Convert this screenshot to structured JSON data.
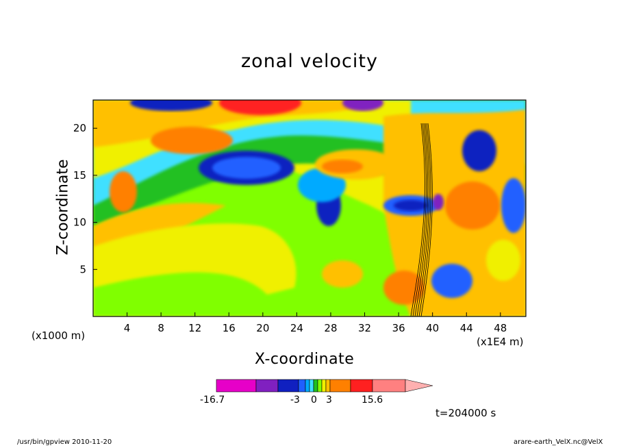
{
  "chart_data": {
    "type": "heatmap",
    "title": "zonal velocity",
    "xlabel": "X-coordinate",
    "ylabel": "Z-coordinate",
    "x_unit": "(x1000 m)",
    "x_unit_secondary": "(x1E4 m)",
    "x_ticks": [
      "4",
      "8",
      "12",
      "16",
      "20",
      "24",
      "28",
      "32",
      "36",
      "40",
      "44",
      "48"
    ],
    "y_ticks": [
      "5",
      "10",
      "15",
      "20"
    ],
    "xlim": [
      0,
      51
    ],
    "ylim": [
      0,
      23
    ],
    "grid": false,
    "colorbar": {
      "tick_labels": [
        "-16.7",
        "-3",
        "0",
        "3",
        "15.6"
      ],
      "colors": [
        "#e600c8",
        "#8020c0",
        "#1020c0",
        "#2060ff",
        "#00aaff",
        "#40e0ff",
        "#20c020",
        "#80ff00",
        "#f0f000",
        "#ffc000",
        "#ff8000",
        "#ff2020",
        "#ff8080",
        "#ffb0b0"
      ]
    },
    "time_label": "t=204000 s"
  },
  "footer": {
    "left": "/usr/bin/gpview   2010-11-20",
    "right": "arare-earth_VelX.nc@VelX"
  }
}
